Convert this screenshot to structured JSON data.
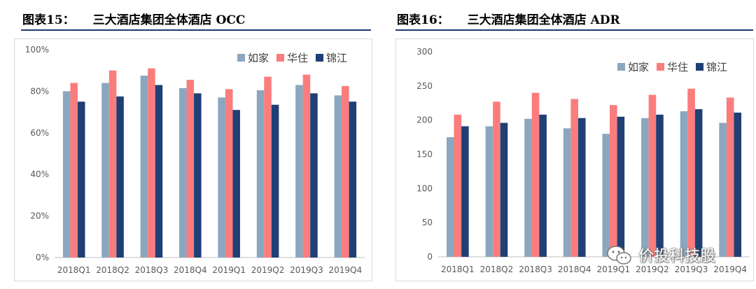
{
  "colors": {
    "s0": "#8ba7c0",
    "s1": "#fb7c7c",
    "s2": "#1f3f75",
    "rule": "#1f3a6e",
    "grid": "#e6e6e6"
  },
  "watermark": {
    "text": "价投科技股",
    "icon": "wechat-icon"
  },
  "chart_data": [
    {
      "heading_label": "图表15：",
      "title": "三大酒店集团全体酒店 OCC",
      "type": "bar",
      "categories": [
        "2018Q1",
        "2018Q2",
        "2018Q3",
        "2018Q4",
        "2019Q1",
        "2019Q2",
        "2019Q3",
        "2019Q4"
      ],
      "series": [
        {
          "name": "如家",
          "values": [
            80,
            84,
            87.5,
            81.5,
            77,
            80.5,
            83,
            78
          ]
        },
        {
          "name": "华住",
          "values": [
            84,
            90,
            91,
            85.5,
            81,
            87,
            88,
            82.5
          ]
        },
        {
          "name": "锦江",
          "values": [
            75,
            77.5,
            83,
            79,
            71,
            73.5,
            79,
            75
          ]
        }
      ],
      "ylim": [
        0,
        100
      ],
      "yticks": [
        0,
        20,
        40,
        60,
        80,
        100
      ],
      "ytick_labels": [
        "0%",
        "20%",
        "40%",
        "60%",
        "80%",
        "100%"
      ],
      "grid": false,
      "legend": "top-right"
    },
    {
      "heading_label": "图表16：",
      "title": "三大酒店集团全体酒店 ADR",
      "type": "bar",
      "categories": [
        "2018Q1",
        "2018Q2",
        "2018Q3",
        "2018Q4",
        "2019Q1",
        "2019Q2",
        "2019Q3",
        "2019Q4"
      ],
      "series": [
        {
          "name": "如家",
          "values": [
            175,
            191,
            202,
            188,
            180,
            203,
            213,
            196
          ]
        },
        {
          "name": "华住",
          "values": [
            208,
            227,
            240,
            231,
            222,
            237,
            246,
            233
          ]
        },
        {
          "name": "锦江",
          "values": [
            191,
            196,
            208,
            203,
            205,
            208,
            216,
            211
          ]
        }
      ],
      "ylim": [
        0,
        300
      ],
      "yticks": [
        0,
        50,
        100,
        150,
        200,
        250,
        300
      ],
      "ytick_labels": [
        "0",
        "50",
        "100",
        "150",
        "200",
        "250",
        "300"
      ],
      "grid": false,
      "legend": "top-right"
    }
  ]
}
